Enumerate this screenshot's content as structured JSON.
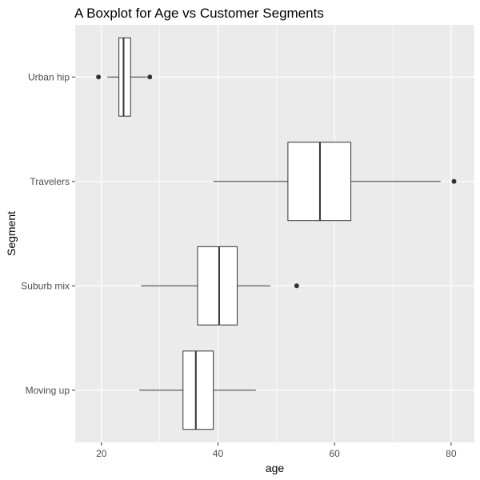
{
  "chart_data": {
    "type": "boxplot",
    "orientation": "horizontal",
    "title": "A Boxplot for Age vs Customer Segments",
    "xlabel": "age",
    "ylabel": "Segment",
    "xlim": [
      15.5,
      84
    ],
    "x_ticks": [
      20,
      40,
      60,
      80
    ],
    "x_minor_ticks": [
      30,
      50,
      70
    ],
    "categories": [
      "Moving up",
      "Suburb mix",
      "Travelers",
      "Urban hip"
    ],
    "boxes": [
      {
        "category": "Moving up",
        "whisker_low": 26.5,
        "q1": 34,
        "median": 36.2,
        "q3": 39.2,
        "whisker_high": 46.5,
        "outliers": []
      },
      {
        "category": "Suburb mix",
        "whisker_low": 26.8,
        "q1": 36.5,
        "median": 40.2,
        "q3": 43.3,
        "whisker_high": 49,
        "outliers": [
          53.5
        ]
      },
      {
        "category": "Travelers",
        "whisker_low": 39.2,
        "q1": 52,
        "median": 57.5,
        "q3": 62.8,
        "whisker_high": 78.2,
        "outliers": [
          80.5
        ]
      },
      {
        "category": "Urban hip",
        "whisker_low": 21,
        "q1": 23,
        "median": 23.8,
        "q3": 25,
        "whisker_high": 27.8,
        "outliers": [
          19.5,
          28.3
        ]
      }
    ],
    "grid": true,
    "legend": "none",
    "colors": {
      "panel_background": "#EBEBEB",
      "grid_major": "#FFFFFF",
      "box_fill": "#FFFFFF",
      "box_line": "#333333",
      "outlier": "#333333",
      "tick_text": "#4D4D4D",
      "tick_mark": "#333333",
      "text": "#000000"
    }
  }
}
